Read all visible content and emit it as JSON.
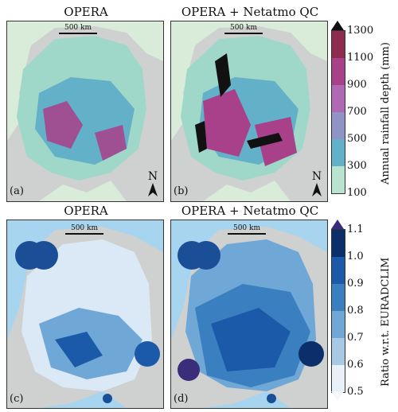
{
  "panels": [
    {
      "title": "OPERA",
      "label": "(a)",
      "scale": "500 km",
      "north": "N"
    },
    {
      "title": "OPERA + Netatmo QC",
      "label": "(b)",
      "scale": "500 km",
      "north": "N"
    },
    {
      "title": "OPERA",
      "label": "(c)",
      "scale": "500 km"
    },
    {
      "title": "OPERA + Netatmo QC",
      "label": "(d)",
      "scale": "500 km"
    }
  ],
  "colorbars": {
    "depth": {
      "label": "Annual rainfall depth (mm)",
      "ticks": [
        "1300",
        "1100",
        "900",
        "700",
        "500",
        "300",
        "100"
      ],
      "colors": [
        "#8e2b4f",
        "#a8408a",
        "#b068b4",
        "#8f93c6",
        "#63b1c9",
        "#8fd0bc",
        "#d3efcf"
      ]
    },
    "ratio": {
      "label": "Ratio w.r.t. EURADCLIM",
      "ticks": [
        "1.1",
        "1.0",
        "0.9",
        "0.8",
        "0.7",
        "0.6",
        "0.5"
      ],
      "colors": [
        "#0b2f6b",
        "#1a5aa8",
        "#3a80c1",
        "#6fa7d6",
        "#a7c9e6",
        "#dbe8f5"
      ]
    }
  },
  "colors": {
    "land": "#cfd0d0",
    "sea_top": "#e6f1e4",
    "sea_bottom": "#9fd3ee",
    "top_low": "#9fd8c8",
    "top_mid": "#63b1c9",
    "top_high": "#a8408a",
    "top_extreme": "#111111",
    "bot_low": "#dbe8f5",
    "bot_mid": "#6fa7d6",
    "bot_high": "#1a5aa8"
  }
}
